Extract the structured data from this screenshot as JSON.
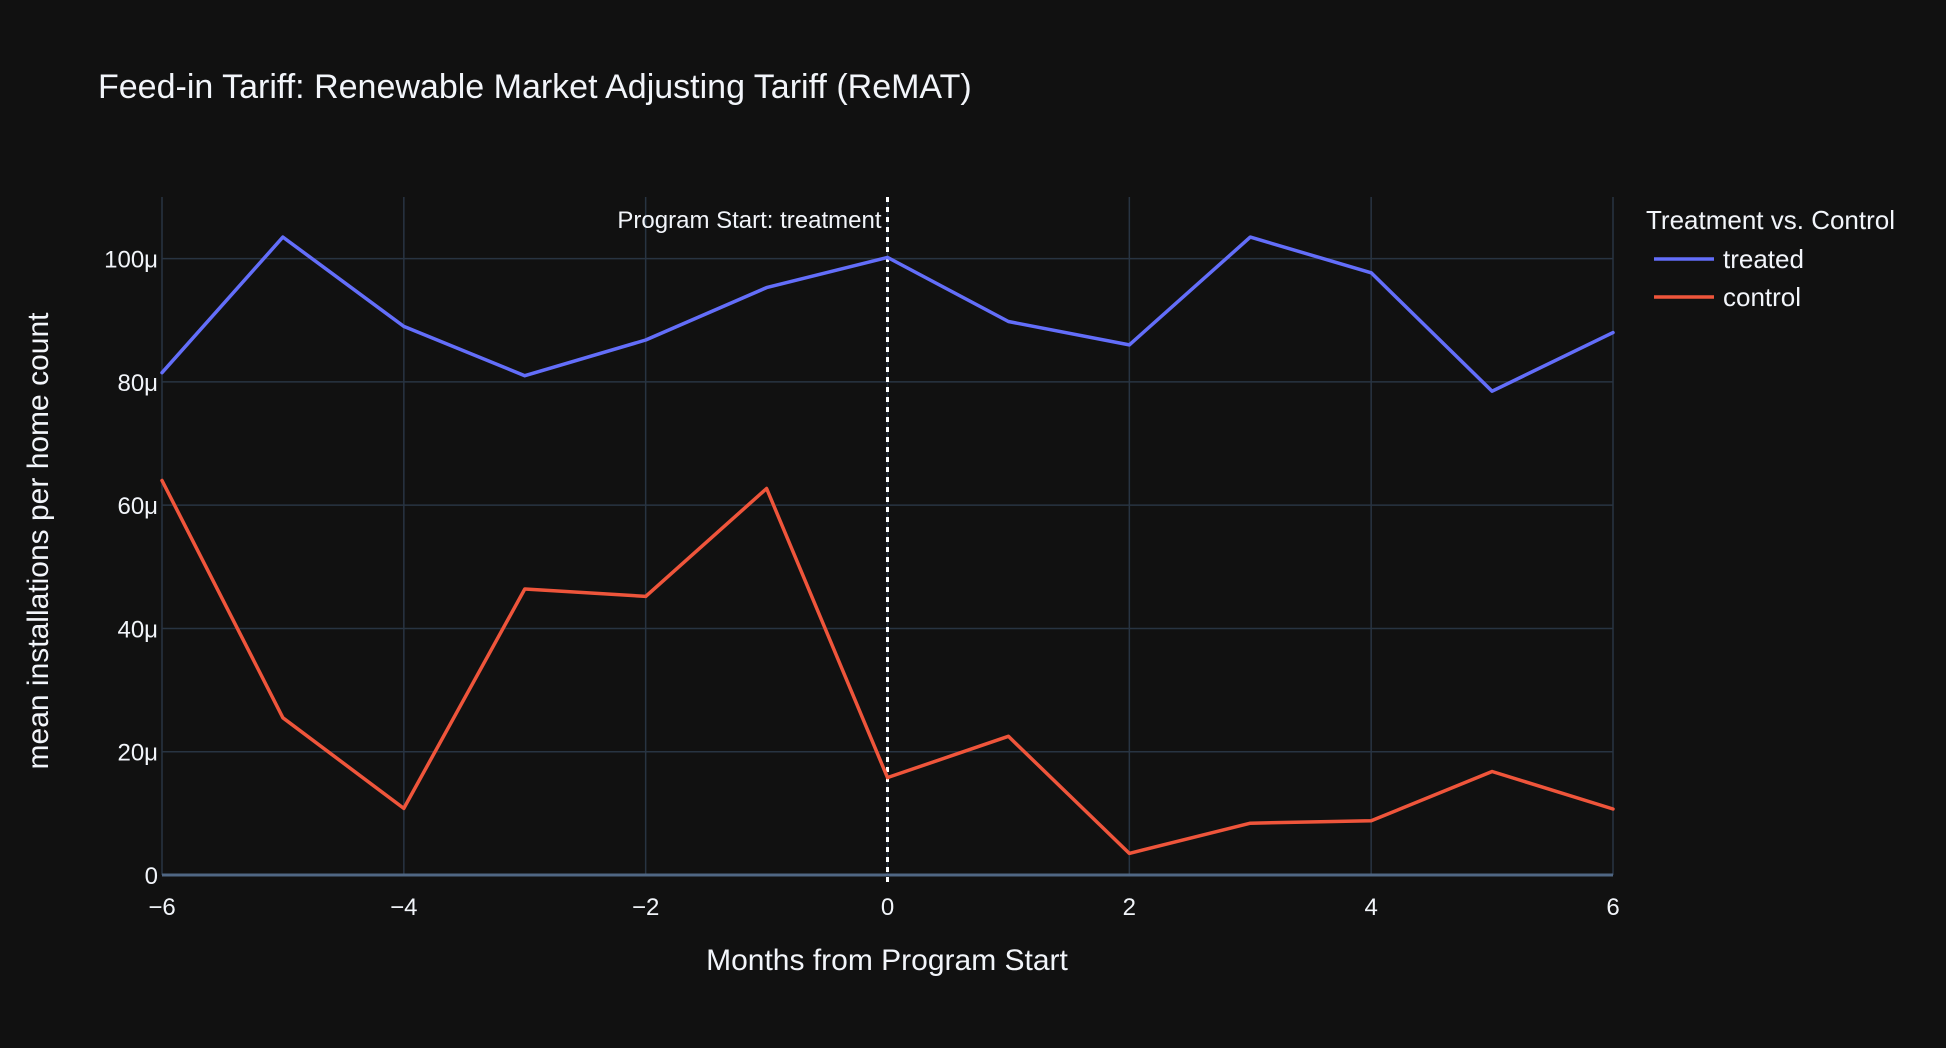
{
  "chart_data": {
    "type": "line",
    "title": "Feed-in Tariff: Renewable Market Adjusting Tariff (ReMAT)",
    "xlabel": "Months from Program Start",
    "ylabel": "mean installations per home count",
    "xlim": [
      -6,
      6
    ],
    "ylim": [
      0,
      0.00011
    ],
    "x_ticks": [
      -6,
      -4,
      -2,
      0,
      2,
      4,
      6
    ],
    "x_tick_labels": [
      "−6",
      "−4",
      "−2",
      "0",
      "2",
      "4",
      "6"
    ],
    "y_ticks": [
      0,
      2e-05,
      4e-05,
      6e-05,
      8e-05,
      0.0001
    ],
    "y_tick_labels": [
      "0",
      "20μ",
      "40μ",
      "60μ",
      "80μ",
      "100μ"
    ],
    "grid": true,
    "legend": {
      "title": "Treatment vs. Control",
      "placement": "top-right-outside"
    },
    "x": [
      -6,
      -5,
      -4,
      -3,
      -2,
      -1,
      0,
      1,
      2,
      3,
      4,
      5,
      6
    ],
    "series": [
      {
        "name": "treated",
        "color": "#636efa",
        "values": [
          8.15e-05,
          0.0001035,
          8.9e-05,
          8.1e-05,
          8.68e-05,
          9.53e-05,
          0.0001002,
          8.98e-05,
          8.6e-05,
          0.0001035,
          9.77e-05,
          7.85e-05,
          8.8e-05
        ]
      },
      {
        "name": "control",
        "color": "#ef553b",
        "values": [
          6.4e-05,
          2.55e-05,
          1.08e-05,
          4.64e-05,
          4.52e-05,
          6.27e-05,
          1.58e-05,
          2.25e-05,
          3.5e-06,
          8.4e-06,
          8.8e-06,
          1.68e-05,
          1.07e-05
        ]
      }
    ],
    "annotations": [
      {
        "type": "vline",
        "x": 0,
        "text": "Program Start: treatment",
        "color": "#ffffff",
        "dash": "dot"
      }
    ]
  }
}
